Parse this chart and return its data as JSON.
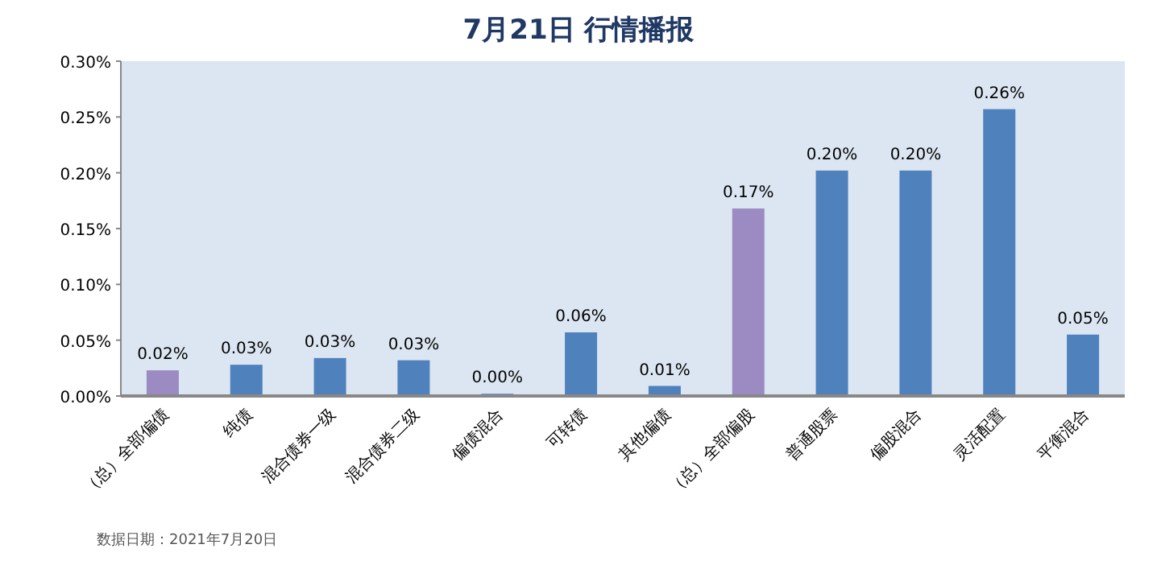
{
  "chart_data": {
    "type": "bar",
    "title": "7月21日  行情播报",
    "categories": [
      "（总）全部偏债",
      "纯债",
      "混合债券一级",
      "混合债券二级",
      "偏债混合",
      "可转债",
      "其他偏债",
      "（总）全部偏股",
      "普通股票",
      "偏股混合",
      "灵活配置",
      "平衡混合"
    ],
    "values": [
      0.023,
      0.028,
      0.034,
      0.032,
      0.002,
      0.057,
      0.009,
      0.168,
      0.202,
      0.202,
      0.257,
      0.055
    ],
    "value_labels": [
      "0.02%",
      "0.03%",
      "0.03%",
      "0.03%",
      "0.00%",
      "0.06%",
      "0.01%",
      "0.17%",
      "0.20%",
      "0.20%",
      "0.26%",
      "0.05%"
    ],
    "colors": [
      "#9b8bc2",
      "#4f81bd",
      "#4f81bd",
      "#4f81bd",
      "#4f81bd",
      "#4f81bd",
      "#4f81bd",
      "#9b8bc2",
      "#4f81bd",
      "#4f81bd",
      "#4f81bd",
      "#4f81bd"
    ],
    "ylim": [
      0,
      0.3
    ],
    "yticks": [
      {
        "value": 0,
        "label": "0.00%"
      },
      {
        "value": 0.05,
        "label": "0.05%"
      },
      {
        "value": 0.1,
        "label": "0.10%"
      },
      {
        "value": 0.15,
        "label": "0.15%"
      },
      {
        "value": 0.2,
        "label": "0.20%"
      },
      {
        "value": 0.25,
        "label": "0.25%"
      },
      {
        "value": 0.3,
        "label": "0.30%"
      }
    ],
    "annotations": [
      "数据日期：2021年7月20日"
    ]
  }
}
